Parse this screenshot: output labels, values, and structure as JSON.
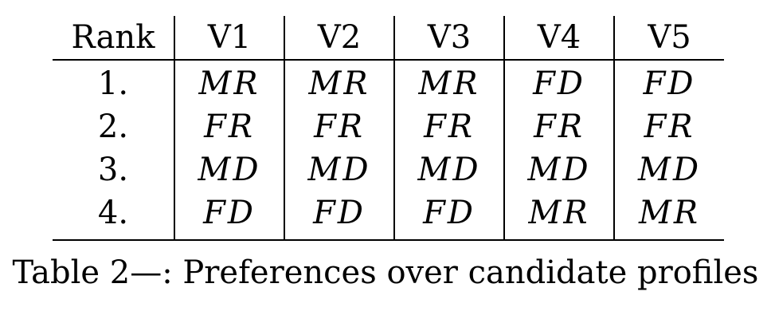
{
  "table": {
    "headers": [
      "Rank",
      "V1",
      "V2",
      "V3",
      "V4",
      "V5"
    ],
    "rows": [
      {
        "rank": "1.",
        "cells": [
          "MR",
          "MR",
          "MR",
          "FD",
          "FD"
        ]
      },
      {
        "rank": "2.",
        "cells": [
          "FR",
          "FR",
          "FR",
          "FR",
          "FR"
        ]
      },
      {
        "rank": "3.",
        "cells": [
          "MD",
          "MD",
          "MD",
          "MD",
          "MD"
        ]
      },
      {
        "rank": "4.",
        "cells": [
          "FD",
          "FD",
          "FD",
          "MR",
          "MR"
        ]
      }
    ]
  },
  "caption": "Table 2—: Preferences over candidate profiles"
}
